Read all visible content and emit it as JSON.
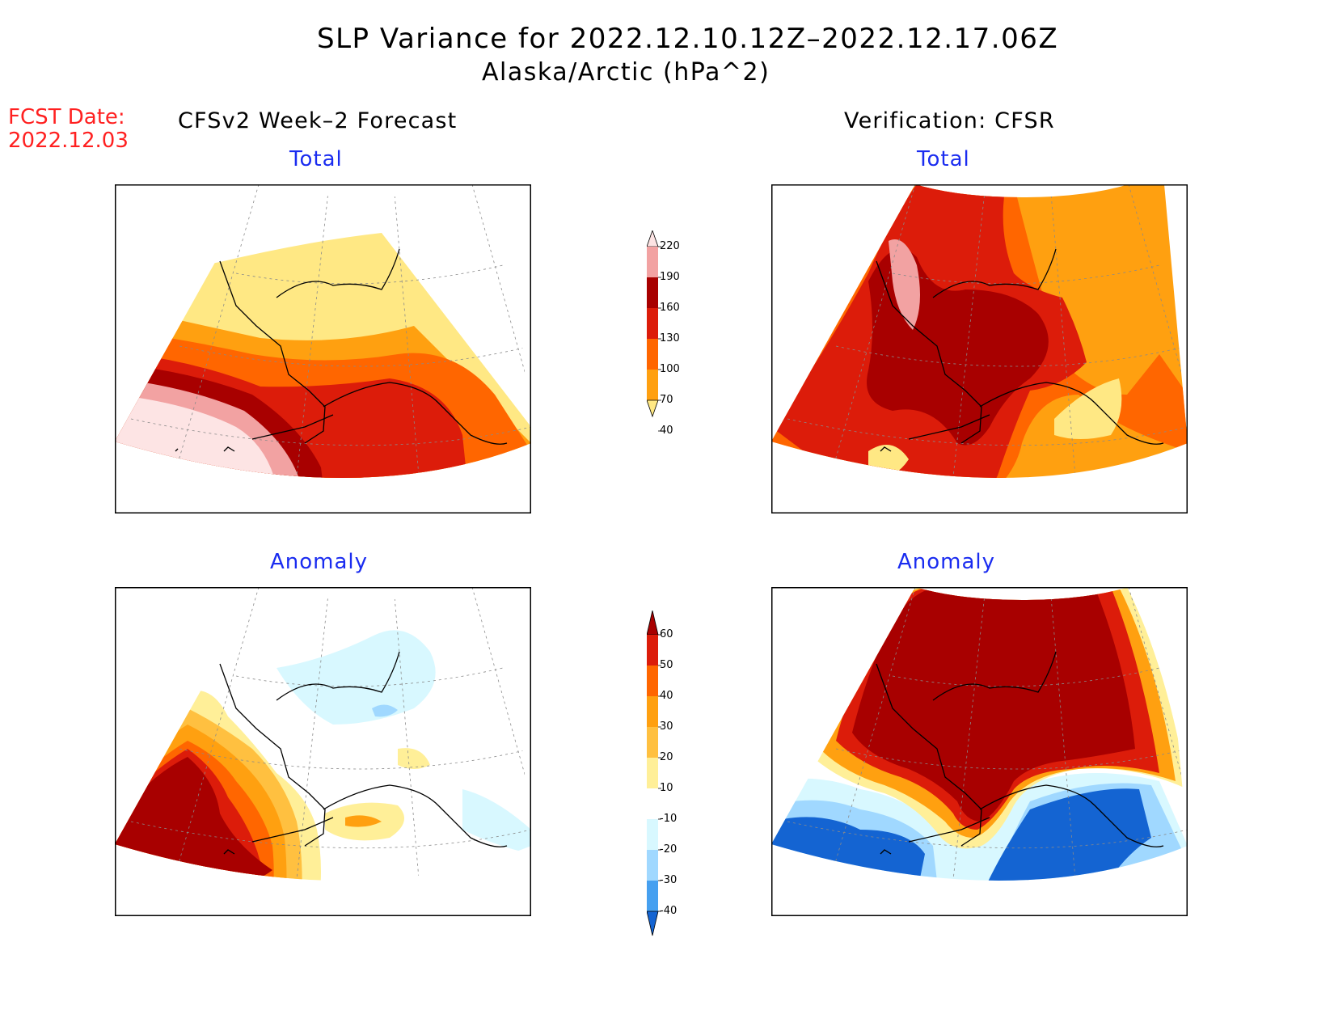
{
  "title": "SLP Variance for 2022.12.10.12Z–2022.12.17.06Z",
  "subtitle": "Alaska/Arctic (hPa^2)",
  "forecast_date": {
    "line1": "FCST Date:",
    "line2": "2022.12.03"
  },
  "columns": {
    "left": "CFSv2 Week–2 Forecast",
    "right": "Verification: CFSR"
  },
  "panels": [
    {
      "id": "forecast-total",
      "heading": "Total"
    },
    {
      "id": "verification-total",
      "heading": "Total"
    },
    {
      "id": "forecast-anomaly",
      "heading": "Anomaly"
    },
    {
      "id": "verification-anomaly",
      "heading": "Anomaly"
    }
  ],
  "colorbars": {
    "total": {
      "labels": [
        "220",
        "190",
        "160",
        "130",
        "100",
        "70",
        "40"
      ],
      "colors": [
        "#fde4e4",
        "#f2a2a2",
        "#a80000",
        "#dc1c0a",
        "#ff6600",
        "#ffa010",
        "#ffe884"
      ]
    },
    "anomaly": {
      "labels": [
        "60",
        "50",
        "40",
        "30",
        "20",
        "10",
        "-10",
        "-20",
        "-30",
        "-40"
      ],
      "colors": [
        "#a80000",
        "#dc1c0a",
        "#ff6600",
        "#ffa010",
        "#ffc040",
        "#ffef98",
        "#ffffff",
        "#d8f8ff",
        "#a0d8ff",
        "#46a0f0",
        "#1464d2"
      ]
    }
  },
  "colors": {
    "title": "#000000",
    "forecast_date": "#ff2020",
    "panel_heading": "#1a2cf0"
  }
}
